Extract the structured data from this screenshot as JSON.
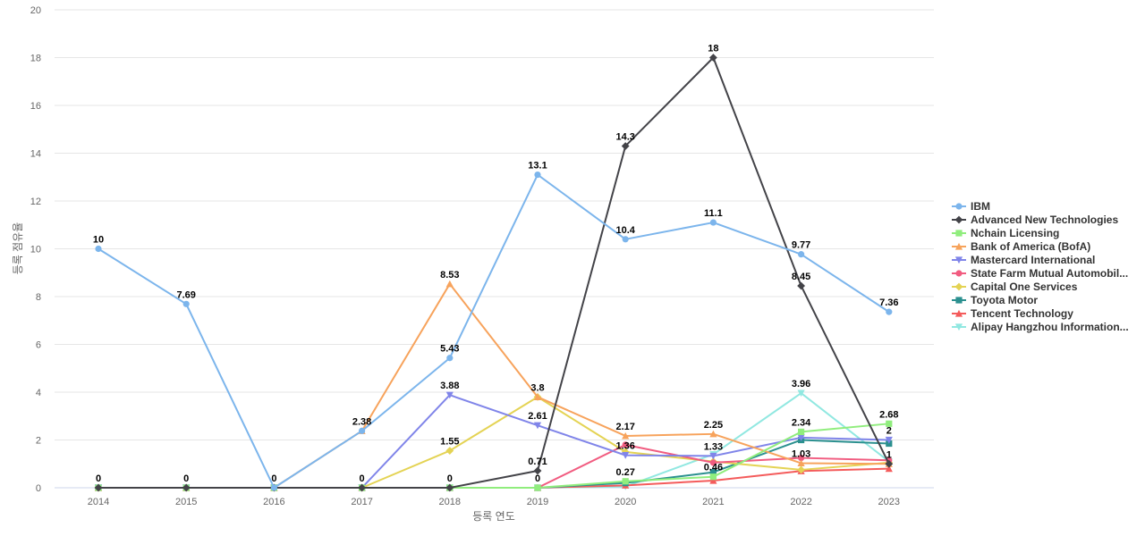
{
  "chart_data": {
    "type": "line",
    "xlabel": "등록 연도",
    "ylabel": "등록 점유율",
    "ylim": [
      0,
      20
    ],
    "yticks": [
      0,
      2,
      4,
      6,
      8,
      10,
      12,
      14,
      16,
      18,
      20
    ],
    "grid": true,
    "legend_position": "right",
    "categories": [
      "2014",
      "2015",
      "2016",
      "2017",
      "2018",
      "2019",
      "2020",
      "2021",
      "2022",
      "2023"
    ],
    "series": [
      {
        "name": "IBM",
        "color": "#7cb5ec",
        "marker": "circle",
        "values": [
          10,
          7.69,
          0,
          2.38,
          5.43,
          13.1,
          10.4,
          11.1,
          9.77,
          7.36
        ],
        "labels": [
          "10",
          "7.69",
          null,
          null,
          "5.43",
          "13.1",
          "10.4",
          "11.1",
          "9.77",
          "7.36"
        ]
      },
      {
        "name": "Advanced New Technologies",
        "color": "#434348",
        "marker": "diamond",
        "values": [
          0,
          0,
          0,
          0,
          0,
          0.71,
          14.3,
          18,
          8.45,
          1
        ],
        "labels": [
          null,
          null,
          null,
          null,
          null,
          "0.71",
          "14.3",
          "18",
          "8.45",
          "1"
        ]
      },
      {
        "name": "Nchain Licensing",
        "color": "#90ed7d",
        "marker": "square",
        "values": [
          0,
          0,
          0,
          0,
          0,
          0,
          0.27,
          0.46,
          2.34,
          2.68
        ],
        "labels": [
          null,
          null,
          null,
          null,
          null,
          null,
          "0.27",
          "0.46",
          "2.34",
          "2.68"
        ]
      },
      {
        "name": "Bank of America (BofA)",
        "color": "#f7a35c",
        "marker": "triangle",
        "values": [
          0,
          0,
          0,
          2.38,
          8.53,
          3.8,
          2.17,
          2.25,
          1.03,
          1
        ],
        "labels": [
          null,
          null,
          null,
          "2.38",
          "8.53",
          "3.8",
          "2.17",
          "2.25",
          "1.03",
          null
        ]
      },
      {
        "name": "Mastercard International",
        "color": "#8085e9",
        "marker": "triangle-down",
        "values": [
          0,
          0,
          0,
          0,
          3.88,
          2.61,
          1.36,
          1.33,
          2.1,
          2
        ],
        "labels": [
          null,
          null,
          null,
          null,
          "3.88",
          "2.61",
          "1.36",
          "1.33",
          null,
          "2"
        ]
      },
      {
        "name": "State Farm Mutual Automobil...",
        "color": "#f15c80",
        "marker": "circle",
        "values": [
          0,
          0,
          0,
          0,
          0,
          0,
          1.8,
          1.05,
          1.25,
          1.15
        ],
        "labels": [
          null,
          null,
          null,
          null,
          null,
          null,
          null,
          null,
          null,
          null
        ]
      },
      {
        "name": "Capital One Services",
        "color": "#e4d354",
        "marker": "diamond",
        "values": [
          0,
          0,
          0,
          0,
          1.55,
          3.8,
          1.5,
          1.1,
          0.75,
          1.05
        ],
        "labels": [
          null,
          null,
          null,
          null,
          "1.55",
          null,
          null,
          null,
          null,
          null
        ]
      },
      {
        "name": "Toyota Motor",
        "color": "#2b908f",
        "marker": "square",
        "values": [
          0,
          0,
          0,
          0,
          0,
          0,
          0.2,
          0.65,
          2,
          1.85
        ],
        "labels": [
          null,
          null,
          null,
          null,
          null,
          null,
          null,
          null,
          null,
          null
        ]
      },
      {
        "name": "Tencent Technology",
        "color": "#f45b5b",
        "marker": "triangle",
        "values": [
          0,
          0,
          0,
          0,
          0,
          0,
          0.1,
          0.3,
          0.7,
          0.8
        ],
        "labels": [
          null,
          null,
          null,
          null,
          null,
          null,
          null,
          null,
          null,
          null
        ]
      },
      {
        "name": "Alipay Hangzhou Information...",
        "color": "#91e8e1",
        "marker": "triangle-down",
        "values": [
          0,
          0,
          0,
          0,
          0,
          0,
          0.05,
          1.4,
          3.96,
          1.1
        ],
        "labels": [
          null,
          null,
          null,
          null,
          null,
          null,
          null,
          null,
          "3.96",
          null
        ]
      }
    ],
    "zero_labels": [
      "0",
      "0",
      "0",
      "0",
      "0",
      "0"
    ]
  }
}
